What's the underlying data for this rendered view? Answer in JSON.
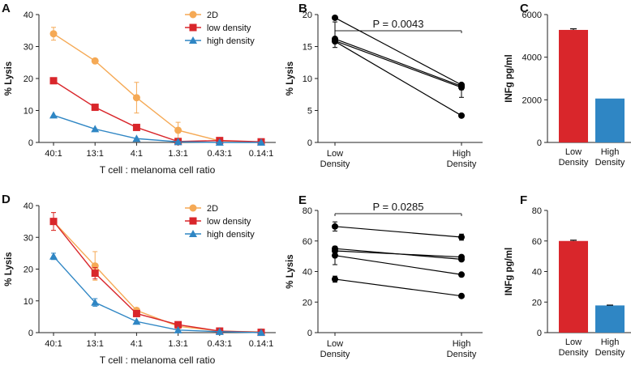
{
  "colors": {
    "twoD": "#f5a955",
    "low": "#d9262b",
    "high": "#2f86c4",
    "axis": "#222222",
    "black": "#000000"
  },
  "chart_data": [
    {
      "panel": "A",
      "type": "line",
      "categories": [
        "40:1",
        "13:1",
        "4:1",
        "1.3:1",
        "0.43:1",
        "0.14:1"
      ],
      "xlabel": "T cell : melanoma cell ratio",
      "ylabel": "% Lysis",
      "ylim": [
        0,
        40
      ],
      "yticks": [
        0,
        10,
        20,
        30,
        40
      ],
      "legend_position": "top-right",
      "series": [
        {
          "name": "2D",
          "marker": "circle",
          "color": "#f5a955",
          "values": [
            34,
            25.5,
            14,
            3.8,
            0.5,
            0.1
          ],
          "errors": [
            2,
            0.5,
            4.8,
            2.5,
            0,
            0
          ]
        },
        {
          "name": "low density",
          "marker": "square",
          "color": "#d9262b",
          "values": [
            19.3,
            11,
            4.7,
            0.3,
            0.6,
            0.2
          ],
          "errors": [
            0,
            0,
            0,
            0,
            0,
            0
          ]
        },
        {
          "name": "high density",
          "marker": "triangle",
          "color": "#2f86c4",
          "values": [
            8.5,
            4.2,
            1.2,
            0.2,
            0,
            0
          ],
          "errors": [
            0,
            0,
            0,
            0,
            0,
            0
          ]
        }
      ]
    },
    {
      "panel": "B",
      "type": "scatter",
      "categories": [
        "Low\nDensity",
        "High\nDensity"
      ],
      "ylabel": "% Lysis",
      "ylim": [
        0,
        20
      ],
      "yticks": [
        0,
        5,
        10,
        15,
        20
      ],
      "annotation": "P = 0.0043",
      "pairs": [
        [
          19.5,
          9
        ],
        [
          16.2,
          8.8
        ],
        [
          15.8,
          4.2
        ],
        [
          15.9,
          8.6
        ]
      ],
      "mean_errors": [
        2,
        0.6
      ]
    },
    {
      "panel": "C",
      "type": "bar",
      "categories": [
        "Low\nDensity",
        "High\nDensity"
      ],
      "ylabel": "INFg pg/ml",
      "ylim": [
        0,
        6000
      ],
      "yticks": [
        0,
        2000,
        4000,
        6000
      ],
      "values": [
        5280,
        2060
      ],
      "errors": [
        50,
        0
      ],
      "colors": [
        "#d9262b",
        "#2f86c4"
      ]
    },
    {
      "panel": "D",
      "type": "line",
      "categories": [
        "40:1",
        "13:1",
        "4:1",
        "1.3:1",
        "0.43:1",
        "0.14:1"
      ],
      "xlabel": "T cell : melanoma cell ratio",
      "ylabel": "% Lysis",
      "ylim": [
        0,
        40
      ],
      "yticks": [
        0,
        10,
        20,
        30,
        40
      ],
      "legend_position": "top-right",
      "series": [
        {
          "name": "2D",
          "marker": "circle",
          "color": "#f5a955",
          "values": [
            35,
            21,
            7,
            2,
            0.5,
            0.2
          ],
          "errors": [
            2.8,
            4.5,
            0.8,
            0.5,
            0,
            0
          ]
        },
        {
          "name": "low density",
          "marker": "square",
          "color": "#d9262b",
          "values": [
            35,
            18.7,
            6,
            2.5,
            0.5,
            0.1
          ],
          "errors": [
            2.8,
            1.8,
            0.6,
            0,
            0,
            0
          ]
        },
        {
          "name": "high density",
          "marker": "triangle",
          "color": "#2f86c4",
          "values": [
            24,
            9.5,
            3.5,
            0.8,
            0.3,
            0
          ],
          "errors": [
            1,
            1.2,
            0,
            0,
            0,
            0
          ]
        }
      ]
    },
    {
      "panel": "E",
      "type": "scatter",
      "categories": [
        "Low\nDensity",
        "High\nDensity"
      ],
      "ylabel": "% Lysis",
      "ylim": [
        0,
        80
      ],
      "yticks": [
        0,
        20,
        40,
        60,
        80
      ],
      "annotation": "P = 0.0285",
      "pairs": [
        [
          69.5,
          62.5
        ],
        [
          55,
          48
        ],
        [
          53.5,
          49.5
        ],
        [
          50.5,
          38
        ],
        [
          35,
          24
        ]
      ],
      "errors_low": [
        3,
        0,
        0,
        6,
        2
      ],
      "errors_high": [
        2,
        0,
        1,
        0,
        0
      ]
    },
    {
      "panel": "F",
      "type": "bar",
      "categories": [
        "Low\nDensity",
        "High\nDensity"
      ],
      "ylabel": "INFg pg/ml",
      "ylim": [
        0,
        80
      ],
      "yticks": [
        0,
        20,
        40,
        60,
        80
      ],
      "values": [
        60,
        17.8
      ],
      "errors": [
        0.5,
        0.2
      ],
      "colors": [
        "#d9262b",
        "#2f86c4"
      ]
    }
  ]
}
